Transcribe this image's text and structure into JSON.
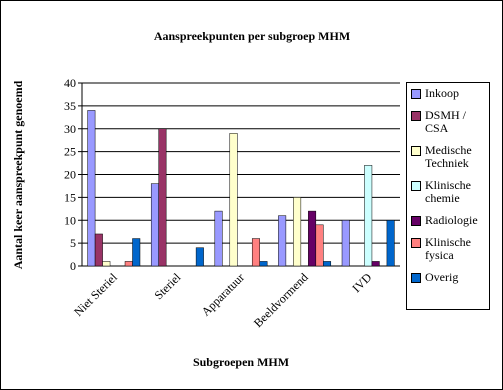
{
  "chart_data": {
    "type": "bar",
    "title": "Aanspreekpunten per subgroep MHM",
    "x_label": "Subgroepen MHM",
    "y_label": "Aantal keer aanspreekpunt genoemd",
    "categories": [
      "Niet Steriel",
      "Steriel",
      "Apparatuur",
      "Beeldvormend",
      "IVD"
    ],
    "series": [
      {
        "name": "Inkoop",
        "color": "#9999ff",
        "values": [
          34,
          18,
          12,
          11,
          10
        ]
      },
      {
        "name": "DSMH / CSA",
        "color": "#993366",
        "values": [
          7,
          30,
          0,
          0,
          0
        ]
      },
      {
        "name": "Medische Techniek",
        "color": "#ffffcc",
        "values": [
          1,
          0,
          29,
          15,
          0
        ]
      },
      {
        "name": "Klinische chemie",
        "color": "#ccffff",
        "values": [
          0,
          0,
          0,
          0,
          22
        ]
      },
      {
        "name": "Radiologie",
        "color": "#660066",
        "values": [
          0,
          0,
          0,
          12,
          1
        ]
      },
      {
        "name": "Klinische fysica",
        "color": "#ff8080",
        "values": [
          1,
          0,
          6,
          9,
          0
        ]
      },
      {
        "name": "Overig",
        "color": "#0066cc",
        "values": [
          6,
          4,
          1,
          1,
          10
        ]
      }
    ],
    "ylim": [
      0,
      40
    ],
    "yticks": [
      0,
      5,
      10,
      15,
      20,
      25,
      30,
      35,
      40
    ],
    "grid": true
  }
}
